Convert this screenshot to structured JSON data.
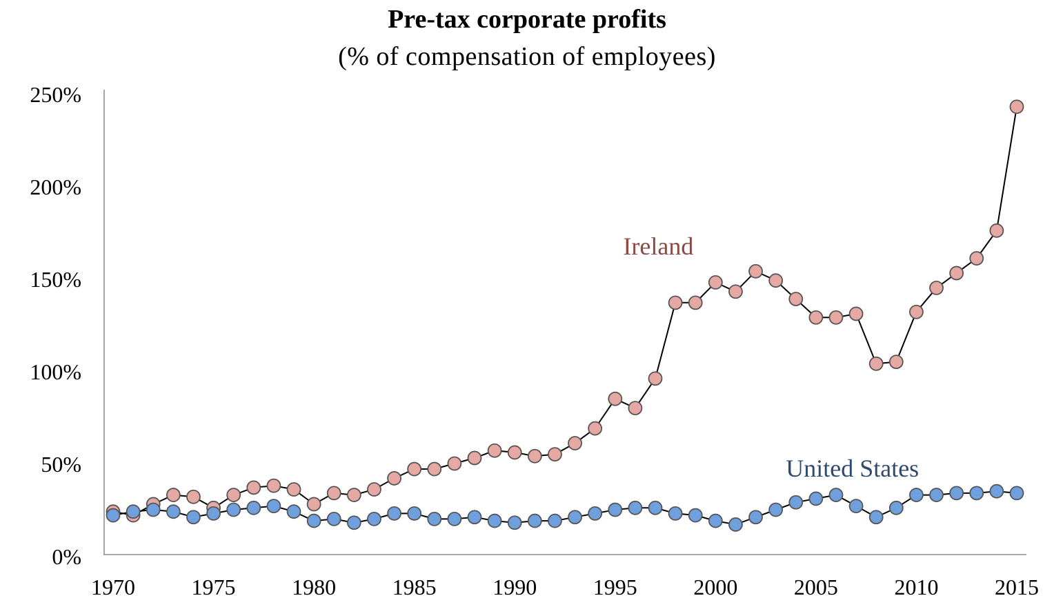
{
  "chart_data": {
    "type": "line",
    "title": "Pre-tax corporate profits",
    "subtitle": "(% of compensation of employees)",
    "xlabel": "",
    "ylabel": "",
    "xlim": [
      1970,
      2015
    ],
    "ylim": [
      0,
      250
    ],
    "x_ticks": [
      "1970",
      "1975",
      "1980",
      "1985",
      "1990",
      "1995",
      "2000",
      "2005",
      "2010",
      "2015"
    ],
    "y_ticks": [
      "0%",
      "50%",
      "100%",
      "150%",
      "200%",
      "250%"
    ],
    "grid": false,
    "legend": "none",
    "x": [
      1970,
      1971,
      1972,
      1973,
      1974,
      1975,
      1976,
      1977,
      1978,
      1979,
      1980,
      1981,
      1982,
      1983,
      1984,
      1985,
      1986,
      1987,
      1988,
      1989,
      1990,
      1991,
      1992,
      1993,
      1994,
      1995,
      1996,
      1997,
      1998,
      1999,
      2000,
      2001,
      2002,
      2003,
      2004,
      2005,
      2006,
      2007,
      2008,
      2009,
      2010,
      2011,
      2012,
      2013,
      2014,
      2015
    ],
    "series": [
      {
        "name": "Ireland",
        "color": "#e6a8a2",
        "label_color": "#8b4a44",
        "values": [
          24,
          22,
          28,
          33,
          32,
          26,
          33,
          37,
          38,
          36,
          28,
          34,
          33,
          36,
          42,
          47,
          47,
          50,
          53,
          57,
          56,
          54,
          55,
          61,
          69,
          85,
          80,
          96,
          137,
          137,
          148,
          143,
          154,
          149,
          139,
          129,
          129,
          131,
          104,
          105,
          132,
          145,
          153,
          161,
          176,
          243
        ]
      },
      {
        "name": "United States",
        "color": "#6f9fdc",
        "label_color": "#2e4a6e",
        "values": [
          22,
          24,
          25,
          24,
          21,
          23,
          25,
          26,
          27,
          24,
          19,
          20,
          18,
          20,
          23,
          23,
          20,
          20,
          21,
          19,
          18,
          19,
          19,
          21,
          23,
          25,
          26,
          26,
          23,
          22,
          19,
          17,
          21,
          25,
          29,
          31,
          33,
          27,
          21,
          26,
          33,
          33,
          34,
          34,
          35,
          34
        ]
      }
    ]
  }
}
